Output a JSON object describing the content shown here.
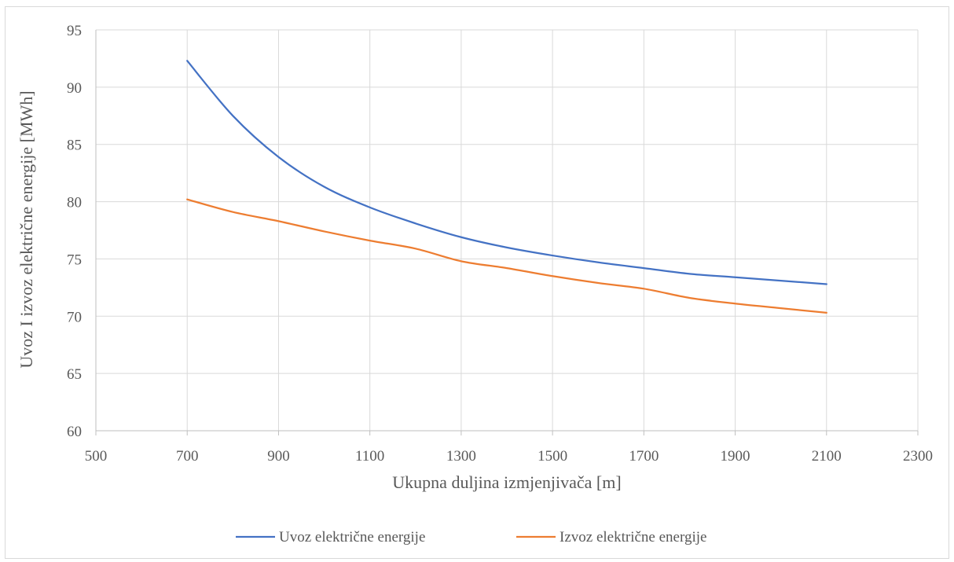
{
  "chart_data": {
    "type": "line",
    "xlabel": "Ukupna duljina izmjenjivača [m]",
    "ylabel": "Uvoz I izvoz električne energije [MWh]",
    "xlim": [
      500,
      2300
    ],
    "ylim": [
      60,
      95
    ],
    "xticks": [
      "500",
      "700",
      "900",
      "1100",
      "1300",
      "1500",
      "1700",
      "1900",
      "2100",
      "2300"
    ],
    "yticks": [
      "60",
      "65",
      "70",
      "75",
      "80",
      "85",
      "90",
      "95"
    ],
    "grid": true,
    "legend_position": "bottom",
    "series": [
      {
        "name": "Uvoz električne energije",
        "color": "#4472c4",
        "x": [
          700,
          800,
          900,
          1000,
          1100,
          1200,
          1300,
          1400,
          1500,
          1600,
          1700,
          1800,
          1900,
          2000,
          2100
        ],
        "y": [
          92.3,
          87.5,
          83.9,
          81.3,
          79.5,
          78.1,
          76.9,
          76.0,
          75.3,
          74.7,
          74.2,
          73.7,
          73.4,
          73.1,
          72.8
        ]
      },
      {
        "name": "Izvoz električne energije",
        "color": "#ed7d31",
        "x": [
          700,
          800,
          900,
          1000,
          1100,
          1200,
          1300,
          1400,
          1500,
          1600,
          1700,
          1800,
          1900,
          2000,
          2100
        ],
        "y": [
          80.2,
          79.1,
          78.3,
          77.4,
          76.6,
          75.9,
          74.8,
          74.2,
          73.5,
          72.9,
          72.4,
          71.6,
          71.1,
          70.7,
          70.3
        ]
      }
    ]
  }
}
